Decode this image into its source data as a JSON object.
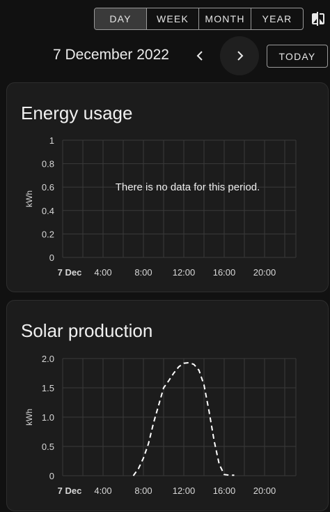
{
  "toolbar": {
    "periods": [
      {
        "label": "DAY",
        "active": true
      },
      {
        "label": "WEEK",
        "active": false
      },
      {
        "label": "MONTH",
        "active": false
      },
      {
        "label": "YEAR",
        "active": false
      }
    ],
    "compare_icon": "compare-icon",
    "date": "7 December 2022",
    "prev_icon": "chevron-left-icon",
    "next_icon": "chevron-right-icon",
    "today_label": "TODAY"
  },
  "colors": {
    "background": "#111111",
    "card": "#1c1c1c",
    "grid": "#3a3a3a",
    "text": "#e8e8e8"
  },
  "energy_card": {
    "title": "Energy usage",
    "empty_message": "There is no data for this period."
  },
  "solar_card": {
    "title": "Solar production"
  },
  "chart_data": [
    {
      "type": "line",
      "title": "Energy usage",
      "ylabel": "kWh",
      "ylim": [
        0,
        1
      ],
      "yticks": [
        "0",
        "0.2",
        "0.4",
        "0.6",
        "0.8",
        "1"
      ],
      "xticks": [
        "7 Dec",
        "4:00",
        "8:00",
        "12:00",
        "16:00",
        "20:00"
      ],
      "grid": true,
      "series": []
    },
    {
      "type": "line",
      "title": "Solar production",
      "ylabel": "kWh",
      "ylim": [
        0,
        2
      ],
      "yticks": [
        "0",
        "0.5",
        "1.0",
        "1.5",
        "2.0"
      ],
      "xticks": [
        "7 Dec",
        "4:00",
        "8:00",
        "12:00",
        "16:00",
        "20:00"
      ],
      "grid": true,
      "line_style": "dashed",
      "series": [
        {
          "x": [
            0,
            1,
            2,
            3,
            4,
            5,
            6,
            7,
            7.5,
            8,
            8.5,
            9,
            9.5,
            10,
            10.5,
            11,
            11.5,
            12,
            12.5,
            13,
            13.5,
            14,
            14.5,
            15,
            15.5,
            16,
            16.5,
            17,
            18,
            19,
            20,
            21,
            22,
            23
          ],
          "values": [
            null,
            null,
            null,
            null,
            null,
            null,
            null,
            0,
            0.12,
            0.3,
            0.55,
            0.9,
            1.2,
            1.5,
            1.62,
            1.75,
            1.86,
            1.92,
            1.93,
            1.9,
            1.8,
            1.55,
            1.1,
            0.6,
            0.2,
            0.02,
            0.01,
            0.01,
            null,
            null,
            null,
            null,
            null,
            null
          ]
        }
      ]
    }
  ]
}
